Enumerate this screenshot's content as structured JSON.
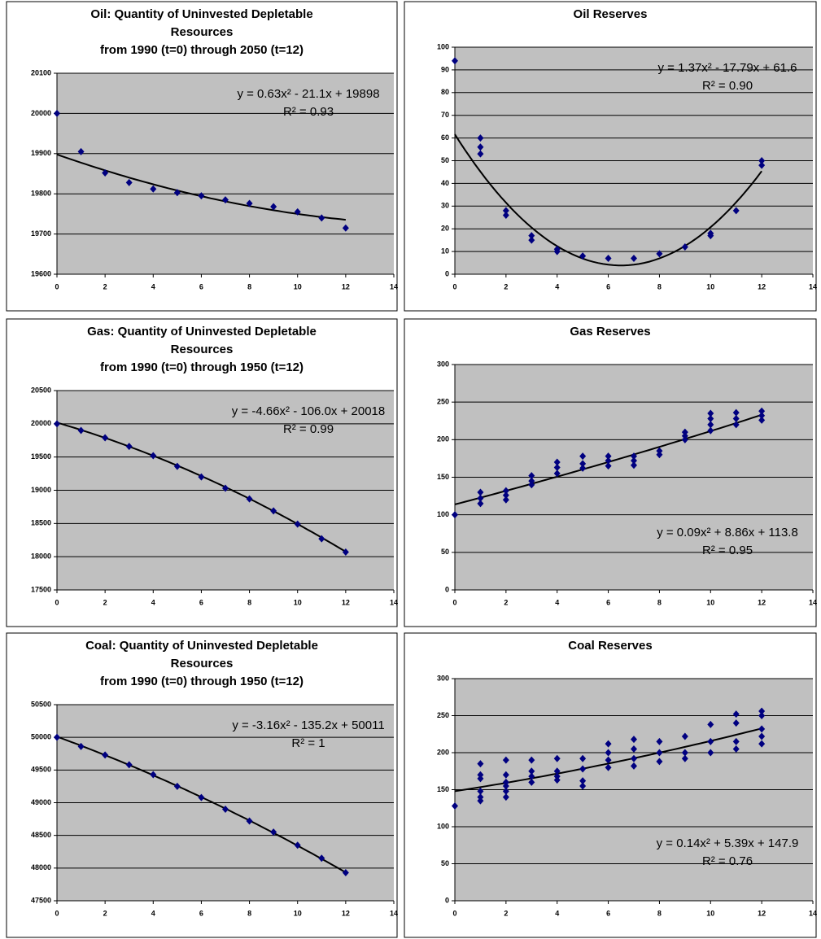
{
  "chart_data": [
    {
      "type": "scatter",
      "title": [
        "Oil: Quantity of Uninvested Depletable",
        "Resources",
        "from 1990 (t=0) through 2050 (t=12)"
      ],
      "x": [
        0,
        1,
        2,
        3,
        4,
        5,
        6,
        7,
        8,
        9,
        10,
        11,
        12
      ],
      "values": [
        20000,
        19905,
        19852,
        19828,
        19812,
        19803,
        19795,
        19785,
        19776,
        19768,
        19755,
        19740,
        19715
      ],
      "color": "#000080",
      "xlim": [
        0,
        14
      ],
      "xticks": [
        0,
        2,
        4,
        6,
        8,
        10,
        12,
        14
      ],
      "ylim": [
        19600,
        20100
      ],
      "yticks": [
        19600,
        19700,
        19800,
        19900,
        20000,
        20100
      ],
      "grid": true,
      "equation": "y = 0.63x² - 21.1x + 19898",
      "r2": "R² = 0.93",
      "equation_position": "top-right"
    },
    {
      "type": "scatter",
      "title": [
        "Oil Reserves"
      ],
      "x": [
        0,
        1,
        1,
        1,
        2,
        2,
        3,
        3,
        4,
        4,
        5,
        6,
        7,
        8,
        9,
        10,
        10,
        11,
        12,
        12
      ],
      "values": [
        94,
        60,
        56,
        53,
        28,
        26,
        17,
        15,
        11,
        10,
        8,
        7,
        7,
        9,
        12,
        18,
        17,
        28,
        50,
        48
      ],
      "color": "#000080",
      "xlim": [
        0,
        14
      ],
      "xticks": [
        0,
        2,
        4,
        6,
        8,
        10,
        12,
        14
      ],
      "ylim": [
        0,
        100
      ],
      "yticks": [
        0,
        10,
        20,
        30,
        40,
        50,
        60,
        70,
        80,
        90,
        100
      ],
      "grid": true,
      "equation": "y = 1.37x² - 17.79x + 61.6",
      "r2": "R² = 0.90",
      "equation_position": "top-right"
    },
    {
      "type": "scatter",
      "title": [
        "Gas: Quantity of Uninvested Depletable",
        "Resources",
        "from 1990 (t=0) through 1950 (t=12)"
      ],
      "x": [
        0,
        1,
        2,
        3,
        4,
        5,
        6,
        7,
        8,
        9,
        10,
        11,
        12
      ],
      "values": [
        20000,
        19900,
        19790,
        19660,
        19520,
        19360,
        19200,
        19030,
        18870,
        18690,
        18490,
        18270,
        18070
      ],
      "color": "#000080",
      "xlim": [
        0,
        14
      ],
      "xticks": [
        0,
        2,
        4,
        6,
        8,
        10,
        12,
        14
      ],
      "ylim": [
        17500,
        20500
      ],
      "yticks": [
        17500,
        18000,
        18500,
        19000,
        19500,
        20000,
        20500
      ],
      "grid": true,
      "equation": "y = -4.66x² - 106.0x + 20018",
      "r2": "R² = 0.99",
      "equation_position": "top-right"
    },
    {
      "type": "scatter",
      "title": [
        "Gas Reserves"
      ],
      "x": [
        0,
        1,
        1,
        1,
        2,
        2,
        2,
        3,
        3,
        3,
        4,
        4,
        4,
        5,
        5,
        5,
        6,
        6,
        6,
        7,
        7,
        7,
        8,
        8,
        9,
        9,
        9,
        10,
        10,
        10,
        10,
        11,
        11,
        11,
        12,
        12,
        12
      ],
      "values": [
        100,
        130,
        122,
        115,
        132,
        126,
        120,
        152,
        145,
        140,
        170,
        163,
        155,
        178,
        168,
        162,
        178,
        172,
        165,
        178,
        172,
        166,
        185,
        180,
        210,
        205,
        200,
        235,
        228,
        220,
        212,
        236,
        228,
        220,
        238,
        232,
        226
      ],
      "color": "#000080",
      "xlim": [
        0,
        14
      ],
      "xticks": [
        0,
        2,
        4,
        6,
        8,
        10,
        12,
        14
      ],
      "ylim": [
        0,
        300
      ],
      "yticks": [
        0,
        50,
        100,
        150,
        200,
        250,
        300
      ],
      "grid": true,
      "equation": "y = 0.09x² + 8.86x + 113.8",
      "r2": "R² = 0.95",
      "equation_position": "bottom-right"
    },
    {
      "type": "scatter",
      "title": [
        "Coal: Quantity of Uninvested Depletable",
        "Resources",
        "from 1990 (t=0) through 1950 (t=12)"
      ],
      "x": [
        0,
        1,
        2,
        3,
        4,
        5,
        6,
        7,
        8,
        9,
        10,
        11,
        12
      ],
      "values": [
        50000,
        49860,
        49730,
        49580,
        49430,
        49250,
        49080,
        48900,
        48720,
        48550,
        48350,
        48150,
        47930
      ],
      "color": "#000080",
      "xlim": [
        0,
        14
      ],
      "xticks": [
        0,
        2,
        4,
        6,
        8,
        10,
        12,
        14
      ],
      "ylim": [
        47500,
        50500
      ],
      "yticks": [
        47500,
        48000,
        48500,
        49000,
        49500,
        50000,
        50500
      ],
      "grid": true,
      "equation": "y = -3.16x² - 135.2x + 50011",
      "r2": "R² = 1",
      "equation_position": "top-right"
    },
    {
      "type": "scatter",
      "title": [
        "Coal Reserves"
      ],
      "x": [
        0,
        1,
        1,
        1,
        1,
        1,
        1,
        2,
        2,
        2,
        2,
        2,
        2,
        3,
        3,
        3,
        3,
        4,
        4,
        4,
        4,
        5,
        5,
        5,
        5,
        6,
        6,
        6,
        6,
        7,
        7,
        7,
        7,
        8,
        8,
        8,
        9,
        9,
        9,
        10,
        10,
        10,
        11,
        11,
        11,
        11,
        12,
        12,
        12,
        12,
        12
      ],
      "values": [
        128,
        185,
        170,
        165,
        148,
        140,
        135,
        190,
        170,
        160,
        155,
        148,
        140,
        190,
        175,
        168,
        160,
        192,
        175,
        168,
        163,
        192,
        178,
        162,
        155,
        212,
        200,
        190,
        180,
        218,
        205,
        192,
        182,
        215,
        200,
        188,
        222,
        200,
        192,
        238,
        215,
        200,
        252,
        240,
        215,
        205,
        256,
        250,
        232,
        222,
        212
      ],
      "color": "#000080",
      "xlim": [
        0,
        14
      ],
      "xticks": [
        0,
        2,
        4,
        6,
        8,
        10,
        12,
        14
      ],
      "ylim": [
        0,
        300
      ],
      "yticks": [
        0,
        50,
        100,
        150,
        200,
        250,
        300
      ],
      "grid": true,
      "equation": "y = 0.14x² + 5.39x + 147.9",
      "r2": "R² = 0.76",
      "equation_position": "bottom-right"
    }
  ]
}
